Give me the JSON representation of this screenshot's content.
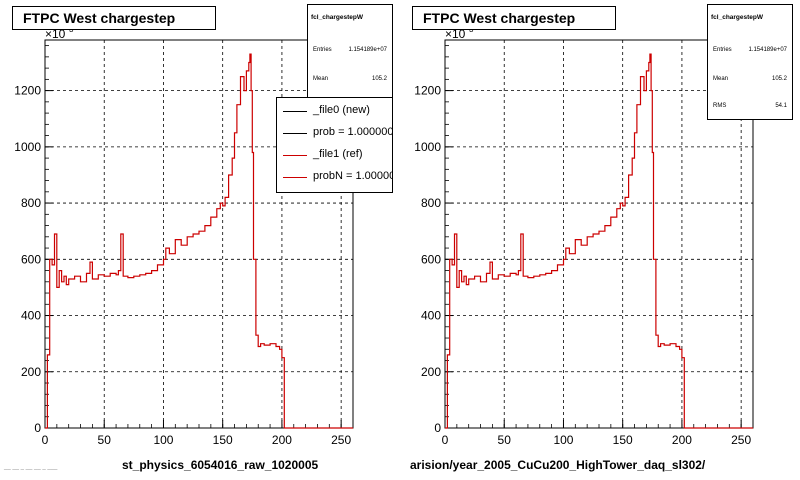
{
  "footnote": "__ __ _ __ __ _ ___",
  "chart_data": [
    {
      "type": "line",
      "title": "FTPC West chargestep",
      "xlabel": "st_physics_6054016_raw_1020005",
      "ylabel": "",
      "y_multiplier": "×10",
      "y_multiplier_exp": "3",
      "xlim": [
        0,
        260
      ],
      "ylim": [
        0,
        1380
      ],
      "x_ticks": [
        0,
        50,
        100,
        150,
        200,
        250
      ],
      "y_ticks": [
        0,
        200,
        400,
        600,
        800,
        1000,
        1200
      ],
      "grid": true,
      "stats": {
        "name": "fcl_chargestepW",
        "entries_label": "Entries",
        "entries": "1.154189e+07",
        "mean_label": "Mean",
        "mean": "105.2"
      },
      "legend": {
        "position": "top-right",
        "entries": [
          {
            "label": "_file0 (new)",
            "color": "#000000"
          },
          {
            "label": "prob = 1.000000",
            "color": "#000000"
          },
          {
            "label": "_file1 (ref)",
            "color": "#cc0000"
          },
          {
            "label": "probN = 1.000000",
            "color": "#cc0000"
          }
        ]
      },
      "series": [
        {
          "name": "_file0 (new)",
          "color": "#000000"
        },
        {
          "name": "_file1 (ref)",
          "color": "#cc0000"
        }
      ]
    },
    {
      "type": "line",
      "title": "FTPC West chargestep",
      "xlabel": "arision/year_2005_CuCu200_HighTower_daq_sl302/",
      "ylabel": "",
      "y_multiplier": "×10",
      "y_multiplier_exp": "3",
      "xlim": [
        0,
        260
      ],
      "ylim": [
        0,
        1380
      ],
      "x_ticks": [
        0,
        50,
        100,
        150,
        200,
        250
      ],
      "y_ticks": [
        0,
        200,
        400,
        600,
        800,
        1000,
        1200
      ],
      "grid": true,
      "stats": {
        "name": "fcl_chargestepW",
        "entries_label": "Entries",
        "entries": "1.154189e+07",
        "mean_label": "Mean",
        "mean": "105.2",
        "rms_label": "RMS",
        "rms": "54.1"
      },
      "series": [
        {
          "name": "_file1 (ref)",
          "color": "#cc0000"
        }
      ]
    }
  ],
  "histogram_x": [
    0,
    2,
    4,
    6,
    8,
    10,
    12,
    14,
    16,
    18,
    20,
    25,
    30,
    35,
    38,
    40,
    45,
    50,
    55,
    60,
    62,
    64,
    66,
    70,
    75,
    80,
    85,
    90,
    95,
    100,
    102,
    105,
    110,
    115,
    120,
    125,
    130,
    135,
    140,
    145,
    148,
    150,
    152,
    155,
    158,
    160,
    162,
    165,
    168,
    170,
    172,
    173,
    174,
    175,
    176,
    178,
    180,
    182,
    185,
    190,
    195,
    198,
    200,
    202,
    203,
    260
  ],
  "histogram_y": [
    0,
    260,
    600,
    580,
    690,
    500,
    560,
    520,
    540,
    510,
    530,
    540,
    520,
    550,
    590,
    530,
    545,
    540,
    550,
    545,
    560,
    690,
    540,
    535,
    540,
    545,
    550,
    560,
    580,
    600,
    640,
    620,
    670,
    650,
    680,
    690,
    700,
    720,
    750,
    780,
    800,
    790,
    820,
    900,
    960,
    1050,
    1150,
    1250,
    1200,
    1270,
    1300,
    1330,
    1200,
    980,
    600,
    330,
    290,
    300,
    295,
    300,
    290,
    280,
    250,
    0,
    0,
    0
  ]
}
